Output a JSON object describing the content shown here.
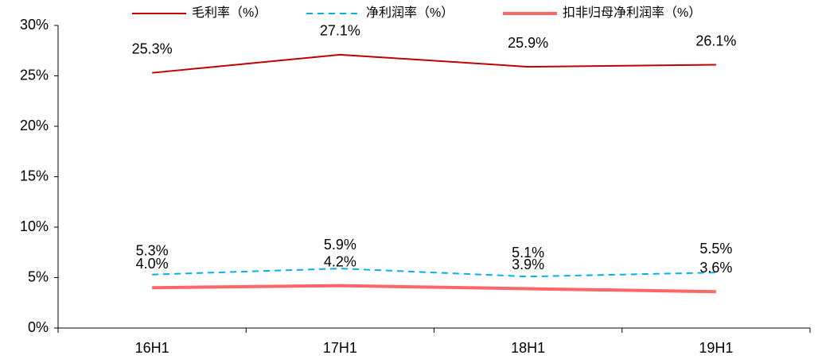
{
  "chart_data": {
    "type": "line",
    "categories": [
      "16H1",
      "17H1",
      "18H1",
      "19H1"
    ],
    "series": [
      {
        "name": "毛利率（%）",
        "color": "#C00000",
        "values": [
          25.3,
          27.1,
          25.9,
          26.1
        ],
        "value_labels": [
          "25.3%",
          "27.1%",
          "25.9%",
          "26.1%"
        ]
      },
      {
        "name": "净利润率（%）",
        "color": "#00B0F0",
        "dashed": true,
        "values": [
          5.3,
          5.9,
          5.1,
          5.5
        ],
        "value_labels": [
          "5.3%",
          "5.9%",
          "5.1%",
          "5.5%"
        ]
      },
      {
        "name": "扣非归母净利润率（%）",
        "color": "#FF6666",
        "values": [
          4.0,
          4.2,
          3.9,
          3.6
        ],
        "value_labels": [
          "4.0%",
          "4.2%",
          "3.9%",
          "3.6%"
        ]
      }
    ],
    "ylim": [
      0,
      30
    ],
    "yticks": [
      {
        "value": 0,
        "label": "0%"
      },
      {
        "value": 5,
        "label": "5%"
      },
      {
        "value": 10,
        "label": "10%"
      },
      {
        "value": 15,
        "label": "15%"
      },
      {
        "value": 20,
        "label": "20%"
      },
      {
        "value": 25,
        "label": "25%"
      },
      {
        "value": 30,
        "label": "30%"
      }
    ],
    "grid": false,
    "legend": "top"
  }
}
